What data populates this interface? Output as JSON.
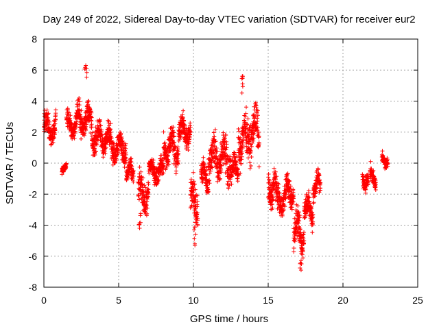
{
  "chart_data": {
    "type": "scatter",
    "title": "Day 249 of 2022, Sidereal Day-to-day VTEC variation (SDTVAR) for receiver eur2",
    "xlabel": "GPS time / hours",
    "ylabel": "SDTVAR / TECUs",
    "xlim": [
      0,
      25
    ],
    "ylim": [
      -8,
      8
    ],
    "xticks": [
      0,
      5,
      10,
      15,
      20,
      25
    ],
    "yticks": [
      -8,
      -6,
      -4,
      -2,
      0,
      2,
      4,
      6,
      8
    ],
    "xtick_labels": [
      "0",
      "5",
      "10",
      "15",
      "20",
      "25"
    ],
    "ytick_labels": [
      "-8",
      "-6",
      "-4",
      "-2",
      "0",
      "2",
      "4",
      "6",
      "8"
    ],
    "grid": true,
    "marker": "+",
    "color": "#ff0000",
    "series": [
      {
        "name": "SDTVAR",
        "note": "dense cloud of points; representative envelope segments (time in hours, center in TECU, spread in TECU)",
        "segments": [
          {
            "t0": 0.0,
            "t1": 0.8,
            "center": 2.3,
            "spread": 1.6
          },
          {
            "t0": 1.2,
            "t1": 1.5,
            "center": -0.3,
            "spread": 0.5
          },
          {
            "t0": 1.5,
            "t1": 2.2,
            "center": 2.5,
            "spread": 1.3
          },
          {
            "t0": 2.2,
            "t1": 3.2,
            "center": 2.8,
            "spread": 1.7
          },
          {
            "t0": 3.2,
            "t1": 4.5,
            "center": 1.6,
            "spread": 1.5
          },
          {
            "t0": 4.5,
            "t1": 5.5,
            "center": 1.0,
            "spread": 1.5
          },
          {
            "t0": 5.5,
            "t1": 6.0,
            "center": -0.7,
            "spread": 1.2
          },
          {
            "t0": 6.3,
            "t1": 7.0,
            "center": -2.0,
            "spread": 1.9
          },
          {
            "t0": 7.0,
            "t1": 8.0,
            "center": -0.5,
            "spread": 1.2
          },
          {
            "t0": 8.0,
            "t1": 9.0,
            "center": 1.0,
            "spread": 2.0
          },
          {
            "t0": 9.0,
            "t1": 9.8,
            "center": 2.0,
            "spread": 1.6
          },
          {
            "t0": 9.8,
            "t1": 10.3,
            "center": -2.5,
            "spread": 2.5
          },
          {
            "t0": 10.5,
            "t1": 11.0,
            "center": -1.0,
            "spread": 1.5
          },
          {
            "t0": 11.0,
            "t1": 12.5,
            "center": 0.3,
            "spread": 2.4
          },
          {
            "t0": 12.5,
            "t1": 13.0,
            "center": -0.5,
            "spread": 1.5
          },
          {
            "t0": 13.0,
            "t1": 13.6,
            "center": 1.5,
            "spread": 2.5
          },
          {
            "t0": 13.6,
            "t1": 14.4,
            "center": 2.0,
            "spread": 2.5
          },
          {
            "t0": 15.0,
            "t1": 15.5,
            "center": -1.5,
            "spread": 2.0
          },
          {
            "t0": 15.5,
            "t1": 16.2,
            "center": -2.3,
            "spread": 1.6
          },
          {
            "t0": 16.2,
            "t1": 16.7,
            "center": -1.8,
            "spread": 1.6
          },
          {
            "t0": 16.7,
            "t1": 17.4,
            "center": -4.5,
            "spread": 2.0
          },
          {
            "t0": 17.4,
            "t1": 18.0,
            "center": -3.0,
            "spread": 1.6
          },
          {
            "t0": 18.0,
            "t1": 18.5,
            "center": -1.5,
            "spread": 1.5
          },
          {
            "t0": 21.3,
            "t1": 21.7,
            "center": -1.0,
            "spread": 1.2
          },
          {
            "t0": 21.8,
            "t1": 22.2,
            "center": -0.9,
            "spread": 1.0
          },
          {
            "t0": 22.6,
            "t1": 23.0,
            "center": 0.2,
            "spread": 0.7
          }
        ],
        "extremes": [
          {
            "x": 2.8,
            "y": 6.3
          },
          {
            "x": 13.3,
            "y": 5.6
          },
          {
            "x": 17.2,
            "y": -6.9
          },
          {
            "x": 6.4,
            "y": -4.2
          },
          {
            "x": 10.1,
            "y": -5.3
          }
        ]
      }
    ]
  }
}
